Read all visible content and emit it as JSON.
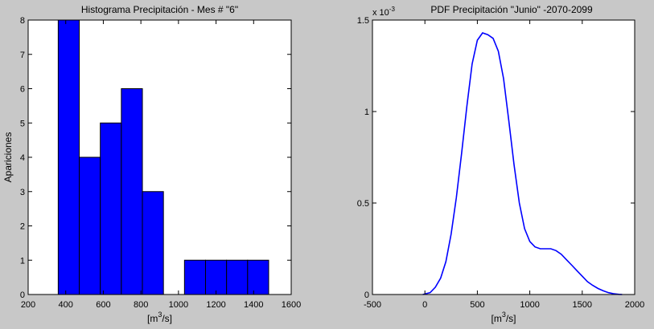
{
  "colors": {
    "figure_background": "#c8c8c8",
    "axes_background": "#ffffff",
    "series": "#0000ff",
    "bar_edge": "#000000"
  },
  "chart_data": [
    {
      "type": "bar",
      "title": "Histograma Precipitación - Mes # \"6\"",
      "xlabel": "[m3/s]",
      "xlabel_parts": {
        "pre": "[m",
        "sup": "3",
        "post": "/s]"
      },
      "ylabel": "Apariciones",
      "xlim": [
        200,
        1600
      ],
      "ylim": [
        0,
        8
      ],
      "grid": false,
      "bin_edges": [
        360,
        472,
        584,
        696,
        808,
        920,
        1032,
        1144,
        1256,
        1368,
        1480
      ],
      "values": [
        8,
        4,
        5,
        6,
        3,
        0,
        1,
        1,
        1,
        1
      ],
      "x_ticks": [
        200,
        400,
        600,
        800,
        1000,
        1200,
        1400,
        1600
      ],
      "x_tick_labels": [
        "200",
        "400",
        "600",
        "800",
        "1000",
        "1200",
        "1400",
        "1600"
      ],
      "y_ticks": [
        0,
        1,
        2,
        3,
        4,
        5,
        6,
        7,
        8
      ],
      "y_tick_labels": [
        "0",
        "1",
        "2",
        "3",
        "4",
        "5",
        "6",
        "7",
        "8"
      ]
    },
    {
      "type": "line",
      "title": "PDF Precipitación \"Junio\" -2070-2099",
      "xlabel": "[m3/s]",
      "xlabel_parts": {
        "pre": "[m",
        "sup": "3",
        "post": "/s]"
      },
      "ylabel": "",
      "xlim": [
        -500,
        2000
      ],
      "ylim": [
        0,
        0.0015
      ],
      "grid": false,
      "y_exponent_label": {
        "base": "x 10",
        "exp": "-3"
      },
      "x_ticks": [
        -500,
        0,
        500,
        1000,
        1500,
        2000
      ],
      "x_tick_labels": [
        "-500",
        "0",
        "500",
        "1000",
        "1500",
        "2000"
      ],
      "y_ticks": [
        0,
        0.0005,
        0.001,
        0.0015
      ],
      "y_tick_labels": [
        "0",
        "0.5",
        "1",
        "1.5"
      ],
      "series": [
        {
          "x": [
            -20,
            50,
            100,
            150,
            200,
            250,
            300,
            350,
            400,
            450,
            500,
            550,
            600,
            650,
            700,
            750,
            800,
            850,
            900,
            950,
            1000,
            1050,
            1100,
            1150,
            1200,
            1250,
            1300,
            1350,
            1400,
            1450,
            1500,
            1550,
            1600,
            1650,
            1700,
            1750,
            1800,
            1850,
            1880
          ],
          "y": [
            0,
            1e-05,
            4e-05,
            9e-05,
            0.00018,
            0.00033,
            0.00053,
            0.00077,
            0.00103,
            0.00126,
            0.00139,
            0.00143,
            0.00142,
            0.0014,
            0.00133,
            0.00118,
            0.00095,
            0.00071,
            0.0005,
            0.00036,
            0.00029,
            0.00026,
            0.00025,
            0.00025,
            0.00025,
            0.00024,
            0.00022,
            0.00019,
            0.00016,
            0.00013,
            0.0001,
            7e-05,
            5e-05,
            3.3e-05,
            2e-05,
            1e-05,
            4e-06,
            1e-06,
            0
          ]
        }
      ]
    }
  ]
}
